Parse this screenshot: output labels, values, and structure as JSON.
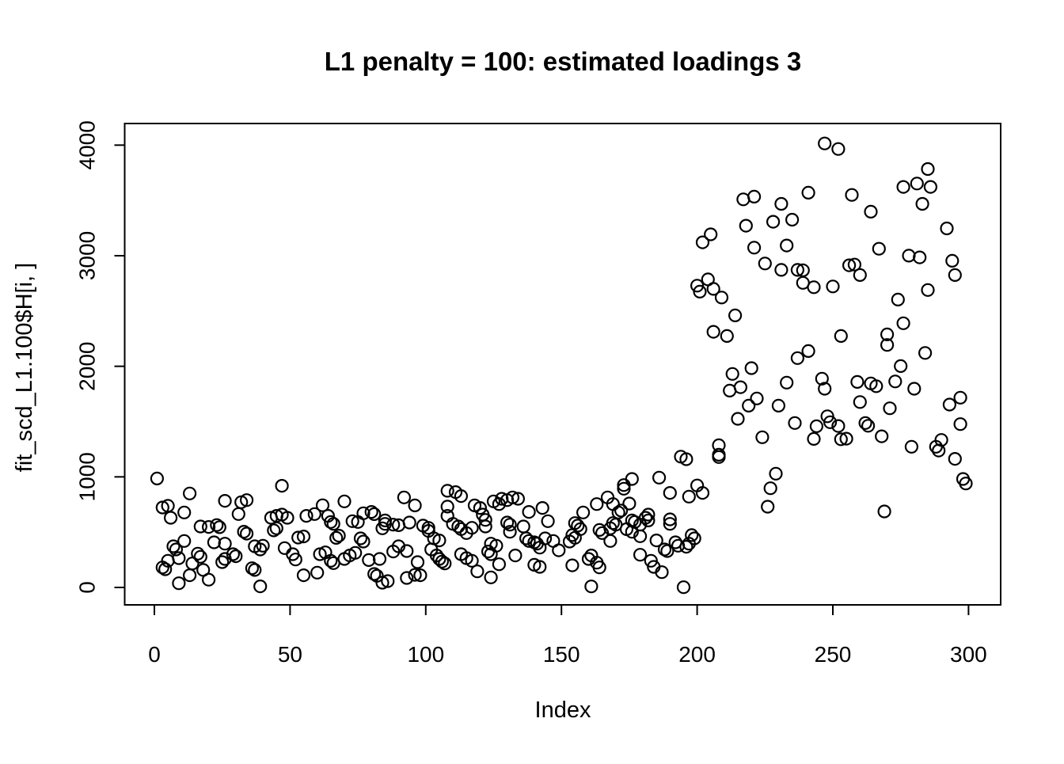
{
  "page": {
    "background": "#ffffff",
    "foreground": "#000000"
  },
  "chart_data": {
    "type": "scatter",
    "title": "L1 penalty = 100: estimated loadings 3",
    "xlabel": "Index",
    "ylabel": "fit_scd_L1.100$H[i, ]",
    "x_ticks": [
      0,
      50,
      100,
      150,
      200,
      250,
      300
    ],
    "y_ticks": [
      0,
      1000,
      2000,
      3000,
      4000
    ],
    "xlim": [
      -11,
      312
    ],
    "ylim": [
      -161,
      4191
    ],
    "grid": false,
    "legend": "none",
    "marker": {
      "shape": "open-circle",
      "color": "#000000"
    },
    "points": [
      [
        1,
        985
      ],
      [
        13,
        850
      ],
      [
        3,
        723
      ],
      [
        5,
        738
      ],
      [
        6,
        630
      ],
      [
        11,
        678
      ],
      [
        26,
        783
      ],
      [
        32,
        771
      ],
      [
        34,
        790
      ],
      [
        31,
        664
      ],
      [
        17,
        551
      ],
      [
        20,
        547
      ],
      [
        23,
        564
      ],
      [
        24,
        545
      ],
      [
        47,
        919
      ],
      [
        43,
        630
      ],
      [
        45,
        647
      ],
      [
        47,
        659
      ],
      [
        49,
        630
      ],
      [
        33,
        504
      ],
      [
        34,
        487
      ],
      [
        22,
        408
      ],
      [
        26,
        396
      ],
      [
        11,
        420
      ],
      [
        7,
        372
      ],
      [
        8,
        344
      ],
      [
        5,
        241
      ],
      [
        3,
        181
      ],
      [
        4,
        165
      ],
      [
        9,
        265
      ],
      [
        16,
        306
      ],
      [
        17,
        277
      ],
      [
        14,
        217
      ],
      [
        18,
        158
      ],
      [
        13,
        110
      ],
      [
        9,
        38
      ],
      [
        20,
        70
      ],
      [
        25,
        229
      ],
      [
        26,
        258
      ],
      [
        29,
        301
      ],
      [
        30,
        282
      ],
      [
        37,
        372
      ],
      [
        39,
        344
      ],
      [
        40,
        377
      ],
      [
        36,
        174
      ],
      [
        37,
        158
      ],
      [
        39,
        10
      ],
      [
        44,
        516
      ],
      [
        45,
        535
      ],
      [
        48,
        356
      ],
      [
        51,
        301
      ],
      [
        52,
        253
      ],
      [
        53,
        451
      ],
      [
        55,
        461
      ],
      [
        55,
        110
      ],
      [
        60,
        134
      ],
      [
        56,
        647
      ],
      [
        59,
        664
      ],
      [
        62,
        743
      ],
      [
        64,
        647
      ],
      [
        65,
        592
      ],
      [
        66,
        575
      ],
      [
        68,
        468
      ],
      [
        67,
        448
      ],
      [
        61,
        301
      ],
      [
        63,
        317
      ],
      [
        65,
        241
      ],
      [
        66,
        220
      ],
      [
        70,
        778
      ],
      [
        73,
        599
      ],
      [
        75,
        592
      ],
      [
        77,
        671
      ],
      [
        80,
        683
      ],
      [
        81,
        663
      ],
      [
        76,
        444
      ],
      [
        77,
        415
      ],
      [
        74,
        313
      ],
      [
        72,
        289
      ],
      [
        70,
        258
      ],
      [
        79,
        248
      ],
      [
        83,
        258
      ],
      [
        81,
        122
      ],
      [
        82,
        105
      ],
      [
        84,
        43
      ],
      [
        86,
        57
      ],
      [
        85,
        606
      ],
      [
        85,
        575
      ],
      [
        84,
        535
      ],
      [
        88,
        568
      ],
      [
        90,
        563
      ],
      [
        92,
        814
      ],
      [
        94,
        587
      ],
      [
        96,
        742
      ],
      [
        90,
        372
      ],
      [
        93,
        329
      ],
      [
        88,
        325
      ],
      [
        97,
        229
      ],
      [
        93,
        86
      ],
      [
        96,
        114
      ],
      [
        98,
        110
      ],
      [
        99,
        559
      ],
      [
        101,
        539
      ],
      [
        101,
        511
      ],
      [
        103,
        444
      ],
      [
        105,
        425
      ],
      [
        102,
        344
      ],
      [
        104,
        289
      ],
      [
        105,
        258
      ],
      [
        106,
        234
      ],
      [
        107,
        217
      ],
      [
        108,
        874
      ],
      [
        111,
        862
      ],
      [
        113,
        826
      ],
      [
        108,
        731
      ],
      [
        108,
        647
      ],
      [
        110,
        575
      ],
      [
        112,
        551
      ],
      [
        113,
        528
      ],
      [
        115,
        492
      ],
      [
        117,
        539
      ],
      [
        118,
        742
      ],
      [
        120,
        719
      ],
      [
        121,
        659
      ],
      [
        122,
        611
      ],
      [
        122,
        551
      ],
      [
        113,
        301
      ],
      [
        115,
        265
      ],
      [
        117,
        241
      ],
      [
        119,
        145
      ],
      [
        123,
        325
      ],
      [
        124,
        301
      ],
      [
        124,
        396
      ],
      [
        126,
        377
      ],
      [
        127,
        210
      ],
      [
        124,
        91
      ],
      [
        125,
        778
      ],
      [
        127,
        754
      ],
      [
        128,
        802
      ],
      [
        130,
        790
      ],
      [
        132,
        814
      ],
      [
        134,
        802
      ],
      [
        130,
        587
      ],
      [
        131,
        568
      ],
      [
        131,
        503
      ],
      [
        133,
        289
      ],
      [
        136,
        551
      ],
      [
        137,
        444
      ],
      [
        138,
        420
      ],
      [
        140,
        408
      ],
      [
        141,
        396
      ],
      [
        142,
        360
      ],
      [
        138,
        683
      ],
      [
        143,
        719
      ],
      [
        145,
        599
      ],
      [
        140,
        205
      ],
      [
        142,
        186
      ],
      [
        144,
        444
      ],
      [
        147,
        420
      ],
      [
        149,
        336
      ],
      [
        196,
        1160
      ],
      [
        208,
        1179
      ],
      [
        176,
        981
      ],
      [
        173,
        926
      ],
      [
        173,
        893
      ],
      [
        186,
        993
      ],
      [
        190,
        855
      ],
      [
        200,
        922
      ],
      [
        197,
        821
      ],
      [
        202,
        855
      ],
      [
        229,
        1029
      ],
      [
        227,
        897
      ],
      [
        226,
        730
      ],
      [
        167,
        814
      ],
      [
        163,
        754
      ],
      [
        169,
        754
      ],
      [
        158,
        678
      ],
      [
        172,
        695
      ],
      [
        175,
        759
      ],
      [
        155,
        582
      ],
      [
        156,
        559
      ],
      [
        157,
        528
      ],
      [
        154,
        473
      ],
      [
        155,
        449
      ],
      [
        153,
        415
      ],
      [
        169,
        582
      ],
      [
        170,
        568
      ],
      [
        168,
        535
      ],
      [
        164,
        520
      ],
      [
        165,
        492
      ],
      [
        168,
        420
      ],
      [
        171,
        678
      ],
      [
        176,
        606
      ],
      [
        177,
        592
      ],
      [
        179,
        568
      ],
      [
        181,
        630
      ],
      [
        182,
        659
      ],
      [
        182,
        606
      ],
      [
        174,
        527
      ],
      [
        176,
        503
      ],
      [
        179,
        463
      ],
      [
        185,
        425
      ],
      [
        190,
        616
      ],
      [
        190,
        575
      ],
      [
        188,
        344
      ],
      [
        189,
        329
      ],
      [
        192,
        408
      ],
      [
        193,
        377
      ],
      [
        196,
        368
      ],
      [
        197,
        396
      ],
      [
        198,
        473
      ],
      [
        199,
        444
      ],
      [
        179,
        296
      ],
      [
        183,
        241
      ],
      [
        184,
        186
      ],
      [
        187,
        138
      ],
      [
        161,
        289
      ],
      [
        160,
        258
      ],
      [
        163,
        224
      ],
      [
        164,
        181
      ],
      [
        154,
        200
      ],
      [
        161,
        9
      ],
      [
        195,
        2
      ],
      [
        247,
        4015
      ],
      [
        252,
        3965
      ],
      [
        217,
        3510
      ],
      [
        221,
        3534
      ],
      [
        231,
        3469
      ],
      [
        241,
        3570
      ],
      [
        218,
        3271
      ],
      [
        228,
        3307
      ],
      [
        235,
        3326
      ],
      [
        205,
        3193
      ],
      [
        202,
        3121
      ],
      [
        221,
        3073
      ],
      [
        233,
        3092
      ],
      [
        225,
        2930
      ],
      [
        231,
        2872
      ],
      [
        237,
        2872
      ],
      [
        239,
        2868
      ],
      [
        204,
        2786
      ],
      [
        200,
        2729
      ],
      [
        201,
        2675
      ],
      [
        206,
        2700
      ],
      [
        239,
        2754
      ],
      [
        243,
        2715
      ],
      [
        250,
        2722
      ],
      [
        257,
        3550
      ],
      [
        264,
        3398
      ],
      [
        285,
        3784
      ],
      [
        276,
        3622
      ],
      [
        281,
        3653
      ],
      [
        286,
        3622
      ],
      [
        283,
        3469
      ],
      [
        292,
        3247
      ],
      [
        267,
        3063
      ],
      [
        278,
        3001
      ],
      [
        282,
        2985
      ],
      [
        294,
        2954
      ],
      [
        256,
        2913
      ],
      [
        258,
        2920
      ],
      [
        260,
        2825
      ],
      [
        295,
        2825
      ],
      [
        209,
        2622
      ],
      [
        214,
        2460
      ],
      [
        206,
        2312
      ],
      [
        211,
        2274
      ],
      [
        237,
        2074
      ],
      [
        241,
        2138
      ],
      [
        253,
        2274
      ],
      [
        213,
        1931
      ],
      [
        220,
        1983
      ],
      [
        216,
        1811
      ],
      [
        212,
        1780
      ],
      [
        233,
        1852
      ],
      [
        246,
        1888
      ],
      [
        247,
        1797
      ],
      [
        222,
        1709
      ],
      [
        219,
        1644
      ],
      [
        230,
        1644
      ],
      [
        215,
        1525
      ],
      [
        236,
        1487
      ],
      [
        248,
        1548
      ],
      [
        249,
        1494
      ],
      [
        244,
        1458
      ],
      [
        243,
        1343
      ],
      [
        252,
        1460
      ],
      [
        253,
        1340
      ],
      [
        255,
        1345
      ],
      [
        224,
        1358
      ],
      [
        208,
        1286
      ],
      [
        208,
        1200
      ],
      [
        194,
        1183
      ],
      [
        274,
        2603
      ],
      [
        285,
        2690
      ],
      [
        276,
        2389
      ],
      [
        270,
        2288
      ],
      [
        270,
        2193
      ],
      [
        275,
        2002
      ],
      [
        284,
        2121
      ],
      [
        259,
        1859
      ],
      [
        264,
        1845
      ],
      [
        266,
        1820
      ],
      [
        273,
        1863
      ],
      [
        280,
        1797
      ],
      [
        260,
        1677
      ],
      [
        271,
        1620
      ],
      [
        293,
        1654
      ],
      [
        297,
        1716
      ],
      [
        297,
        1477
      ],
      [
        262,
        1487
      ],
      [
        263,
        1462
      ],
      [
        268,
        1367
      ],
      [
        279,
        1272
      ],
      [
        290,
        1334
      ],
      [
        288,
        1272
      ],
      [
        289,
        1238
      ],
      [
        295,
        1163
      ],
      [
        269,
        687
      ],
      [
        298,
        981
      ],
      [
        299,
        940
      ]
    ]
  }
}
